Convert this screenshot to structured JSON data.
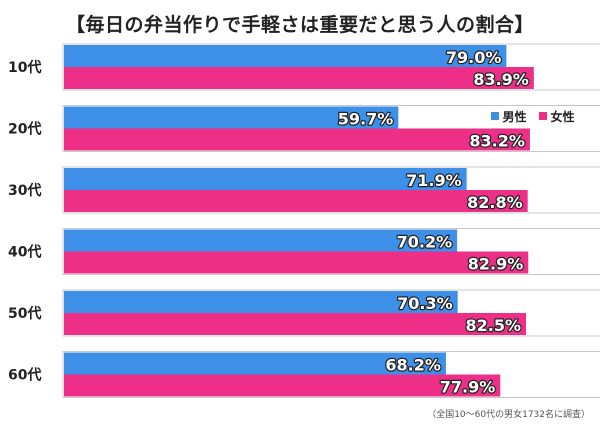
{
  "title": "【毎日の弁当作りで手軽さは重要だと思う人の割合】",
  "footnote": "（全国10～60代の男女1732名に調査）",
  "legend": {
    "male": "男性",
    "female": "女性"
  },
  "colors": {
    "male": "#3d8fe8",
    "female": "#ed2f87",
    "text": "#222222"
  },
  "chart_data": {
    "type": "bar",
    "orientation": "horizontal",
    "categories": [
      "10代",
      "20代",
      "30代",
      "40代",
      "50代",
      "60代"
    ],
    "series": [
      {
        "name": "男性",
        "values": [
          79.0,
          59.7,
          71.9,
          70.2,
          70.3,
          68.2
        ],
        "labels": [
          "79.0%",
          "59.7%",
          "71.9%",
          "70.2%",
          "70.3%",
          "68.2%"
        ]
      },
      {
        "name": "女性",
        "values": [
          83.9,
          83.2,
          82.8,
          82.9,
          82.5,
          77.9
        ],
        "labels": [
          "83.9%",
          "83.2%",
          "82.8%",
          "82.9%",
          "82.5%",
          "77.9%"
        ]
      }
    ],
    "xlim": [
      0,
      100
    ],
    "grid": false,
    "legend_position": "top-right"
  }
}
